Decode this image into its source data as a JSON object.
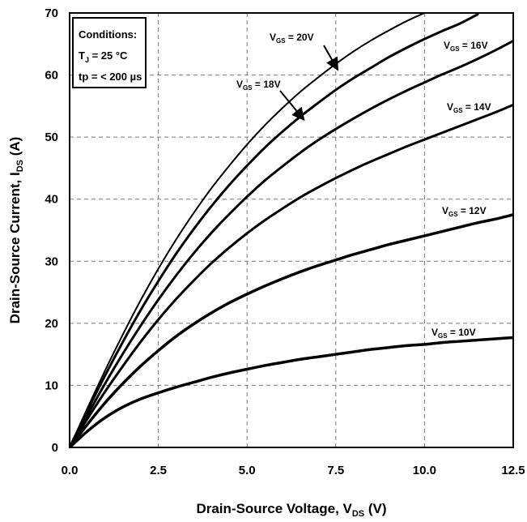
{
  "chart_data": {
    "type": "line",
    "xlabel": {
      "main": "Drain-Source Voltage, V",
      "sub": "DS",
      "unit": " (V)"
    },
    "ylabel": {
      "main": "Drain-Source Current, I",
      "sub": "DS",
      "unit": " (A)"
    },
    "xlim": [
      0,
      12.5
    ],
    "ylim": [
      0,
      70
    ],
    "x_ticks": [
      "0.0",
      "2.5",
      "5.0",
      "7.5",
      "10.0",
      "12.5"
    ],
    "y_ticks": [
      "0",
      "10",
      "20",
      "30",
      "40",
      "50",
      "60",
      "70"
    ],
    "grid": true,
    "conditions": {
      "title": "Conditions:",
      "line1": {
        "main": "T",
        "sub": "J",
        "rest": " = 25 °C"
      },
      "line2": "tp = < 200 µs"
    },
    "series": [
      {
        "name": "VGS = 20V",
        "label": {
          "main": "V",
          "sub": "GS",
          "rest": " = 20V"
        },
        "width": 2,
        "x": [
          0,
          0.5,
          1,
          1.5,
          2,
          2.5,
          3,
          3.5,
          4,
          4.5,
          5,
          5.5,
          6,
          6.5,
          7,
          7.5,
          8,
          8.5,
          9,
          9.5,
          10,
          10.5
        ],
        "y": [
          0,
          6.3,
          12.4,
          18.2,
          23.7,
          28.8,
          33.5,
          37.8,
          41.8,
          45.4,
          48.8,
          51.9,
          54.7,
          57.3,
          59.6,
          61.8,
          63.8,
          65.6,
          67.2,
          68.7,
          70.0,
          71.2
        ]
      },
      {
        "name": "VGS = 18V",
        "label": {
          "main": "V",
          "sub": "GS",
          "rest": " = 18V"
        },
        "width": 3,
        "x": [
          0,
          0.5,
          1,
          1.5,
          2,
          2.5,
          3,
          3.5,
          4,
          4.5,
          5,
          5.5,
          6,
          6.5,
          7,
          7.5,
          8,
          8.5,
          9,
          9.5,
          10,
          10.5,
          11,
          11.5
        ],
        "y": [
          0,
          5.9,
          11.6,
          17.0,
          22.1,
          26.8,
          31.2,
          35.2,
          38.9,
          42.3,
          45.4,
          48.3,
          50.9,
          53.3,
          55.5,
          57.6,
          59.5,
          61.2,
          62.9,
          64.4,
          65.8,
          67.1,
          68.3,
          69.8
        ]
      },
      {
        "name": "VGS = 16V",
        "label": {
          "main": "V",
          "sub": "GS",
          "rest": " = 16V"
        },
        "width": 3,
        "x": [
          0,
          0.5,
          1,
          1.5,
          2,
          2.5,
          3,
          3.5,
          4,
          4.5,
          5,
          5.5,
          6,
          6.5,
          7,
          7.5,
          8,
          8.5,
          9,
          9.5,
          10,
          10.5,
          11,
          11.5,
          12,
          12.5
        ],
        "y": [
          0,
          5.2,
          10.3,
          15.1,
          19.6,
          23.8,
          27.7,
          31.3,
          34.6,
          37.6,
          40.4,
          43.0,
          45.3,
          47.5,
          49.5,
          51.3,
          53.0,
          54.6,
          56.1,
          57.5,
          58.8,
          60.1,
          61.3,
          62.6,
          64.0,
          65.5
        ]
      },
      {
        "name": "VGS = 14V",
        "label": {
          "main": "V",
          "sub": "GS",
          "rest": " = 14V"
        },
        "width": 3,
        "x": [
          0,
          0.5,
          1,
          1.5,
          2,
          2.5,
          3,
          3.5,
          4,
          4.5,
          5,
          5.5,
          6,
          6.5,
          7,
          7.5,
          8,
          8.5,
          9,
          9.5,
          10,
          10.5,
          11,
          11.5,
          12,
          12.5
        ],
        "y": [
          0,
          4.6,
          9.0,
          13.1,
          17.0,
          20.6,
          23.9,
          26.9,
          29.7,
          32.2,
          34.5,
          36.6,
          38.5,
          40.3,
          41.9,
          43.4,
          44.8,
          46.1,
          47.3,
          48.5,
          49.6,
          50.7,
          51.8,
          52.9,
          54.0,
          55.2
        ]
      },
      {
        "name": "VGS = 12V",
        "label": {
          "main": "V",
          "sub": "GS",
          "rest": " = 12V"
        },
        "width": 3.5,
        "x": [
          0,
          0.5,
          1,
          1.5,
          2,
          2.5,
          3,
          3.5,
          4,
          4.5,
          5,
          5.5,
          6,
          6.5,
          7,
          7.5,
          8,
          8.5,
          9,
          9.5,
          10,
          10.5,
          11,
          11.5,
          12,
          12.5
        ],
        "y": [
          0,
          3.7,
          7.2,
          10.3,
          13.1,
          15.6,
          17.9,
          19.9,
          21.7,
          23.3,
          24.7,
          26.0,
          27.2,
          28.3,
          29.3,
          30.2,
          31.1,
          31.9,
          32.7,
          33.4,
          34.1,
          34.8,
          35.5,
          36.2,
          36.8,
          37.5
        ]
      },
      {
        "name": "VGS = 10V",
        "label": {
          "main": "V",
          "sub": "GS",
          "rest": " = 10V"
        },
        "width": 3.5,
        "x": [
          0,
          0.5,
          1,
          1.5,
          2,
          2.5,
          3,
          3.5,
          4,
          4.5,
          5,
          5.5,
          6,
          6.5,
          7,
          7.5,
          8,
          8.5,
          9,
          9.5,
          10,
          10.5,
          11,
          11.5,
          12,
          12.5
        ],
        "y": [
          0,
          2.6,
          4.8,
          6.5,
          7.8,
          8.8,
          9.7,
          10.5,
          11.3,
          12.0,
          12.6,
          13.2,
          13.7,
          14.2,
          14.6,
          15.0,
          15.4,
          15.8,
          16.1,
          16.4,
          16.6,
          16.9,
          17.1,
          17.3,
          17.5,
          17.7
        ]
      }
    ]
  }
}
